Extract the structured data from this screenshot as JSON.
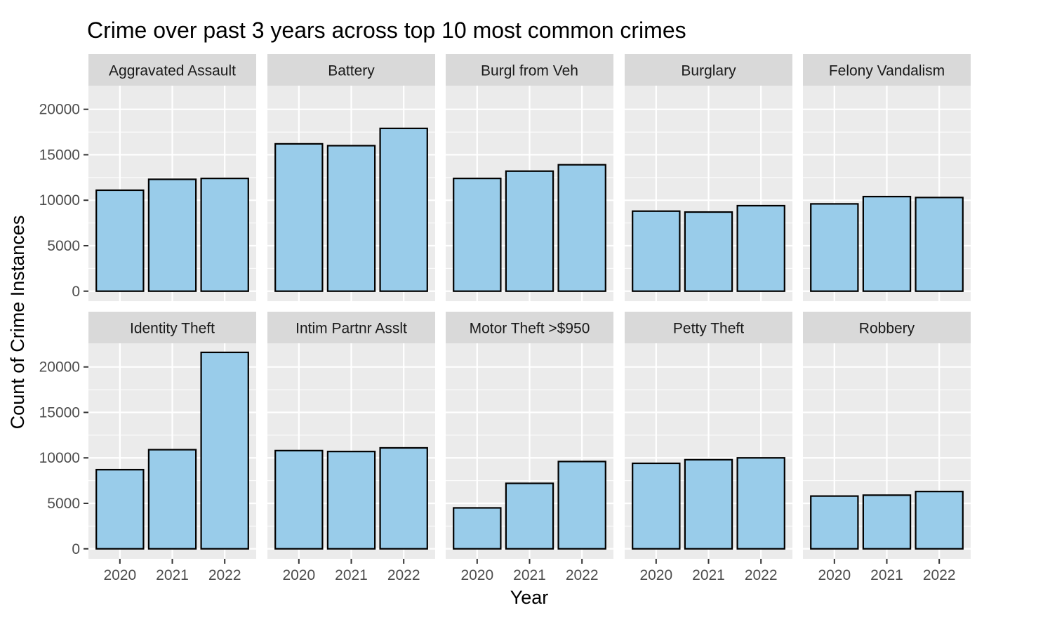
{
  "chart_data": {
    "type": "bar",
    "title": "Crime over past 3 years across top 10 most common crimes",
    "xlabel": "Year",
    "ylabel": "Count of Crime Instances",
    "categories": [
      "2020",
      "2021",
      "2022"
    ],
    "yticks": [
      0,
      5000,
      10000,
      15000,
      20000
    ],
    "ylim": [
      -1100,
      22600
    ],
    "grid": true,
    "legend": "none",
    "colors": {
      "bar_fill": "#99ccea",
      "bar_stroke": "#000000",
      "panel_bg": "#ebebeb",
      "strip_bg": "#d9d9d9",
      "grid": "#ffffff"
    },
    "panels": [
      {
        "name": "Aggravated Assault",
        "values": [
          11100,
          12300,
          12400
        ]
      },
      {
        "name": "Battery",
        "values": [
          16200,
          16000,
          17900
        ]
      },
      {
        "name": "Burgl from Veh",
        "values": [
          12400,
          13200,
          13900
        ]
      },
      {
        "name": "Burglary",
        "values": [
          8800,
          8700,
          9400
        ]
      },
      {
        "name": "Felony Vandalism",
        "values": [
          9600,
          10400,
          10300
        ]
      },
      {
        "name": "Identity Theft",
        "values": [
          8700,
          10900,
          21600
        ]
      },
      {
        "name": "Intim Partnr Asslt",
        "values": [
          10800,
          10700,
          11100
        ]
      },
      {
        "name": "Motor Theft >$950",
        "values": [
          4500,
          7200,
          9600
        ]
      },
      {
        "name": "Petty Theft",
        "values": [
          9400,
          9800,
          10000
        ]
      },
      {
        "name": "Robbery",
        "values": [
          5800,
          5900,
          6300
        ]
      }
    ]
  }
}
